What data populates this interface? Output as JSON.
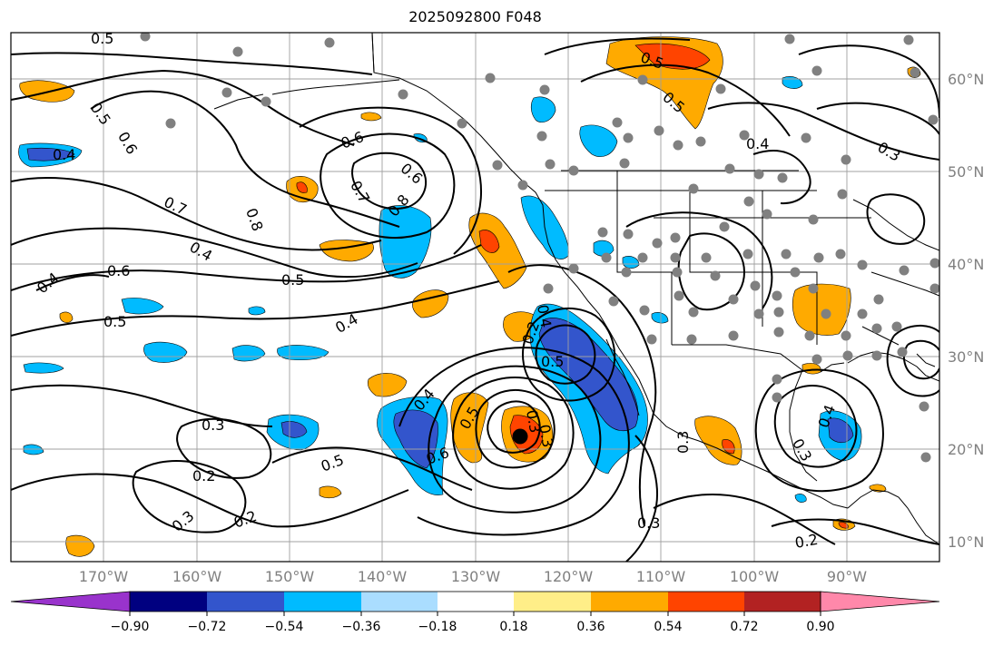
{
  "title": "2025092800 F048",
  "lat_labels": [
    "60°N",
    "50°N",
    "40°N",
    "30°N",
    "20°N",
    "10°N"
  ],
  "lon_labels": [
    "170°W",
    "160°W",
    "150°W",
    "140°W",
    "130°W",
    "120°W",
    "110°W",
    "100°W",
    "90°W"
  ],
  "colorbar": {
    "ticks": [
      "−0.90",
      "−0.72",
      "−0.54",
      "−0.36",
      "−0.18",
      "0.18",
      "0.36",
      "0.54",
      "0.72",
      "0.90"
    ],
    "colors": [
      "#9933cc",
      "#000080",
      "#3355cc",
      "#00bbff",
      "#aaddff",
      "#ffffff",
      "#ffee88",
      "#ffaa00",
      "#ff4400",
      "#b22222",
      "#ff88aa"
    ]
  },
  "contour_labels": [
    {
      "text": "0.5"
    },
    {
      "text": "0.5"
    },
    {
      "text": "0.6"
    },
    {
      "text": "0.4"
    },
    {
      "text": "0.7"
    },
    {
      "text": "0.8"
    },
    {
      "text": "0.4"
    },
    {
      "text": "0.6"
    },
    {
      "text": "0.5"
    },
    {
      "text": "0.5"
    },
    {
      "text": "0.4"
    },
    {
      "text": "0.6"
    },
    {
      "text": "0.8"
    },
    {
      "text": "0.6"
    },
    {
      "text": "0.7"
    },
    {
      "text": "0.4"
    },
    {
      "text": "0.3"
    },
    {
      "text": "0.2"
    },
    {
      "text": "0.3"
    },
    {
      "text": "0.2"
    },
    {
      "text": "0.5"
    },
    {
      "text": "0.6"
    },
    {
      "text": "0.4"
    },
    {
      "text": "0.5"
    },
    {
      "text": "0.3"
    },
    {
      "text": "0.3"
    },
    {
      "text": "0.5"
    },
    {
      "text": "0.2"
    },
    {
      "text": "0.4"
    },
    {
      "text": "0.3"
    },
    {
      "text": "0.3"
    },
    {
      "text": "0.4"
    },
    {
      "text": "0.3"
    },
    {
      "text": "0.2"
    },
    {
      "text": "0.5"
    },
    {
      "text": "0.4"
    },
    {
      "text": "0.3"
    },
    {
      "text": "0.5"
    }
  ]
}
